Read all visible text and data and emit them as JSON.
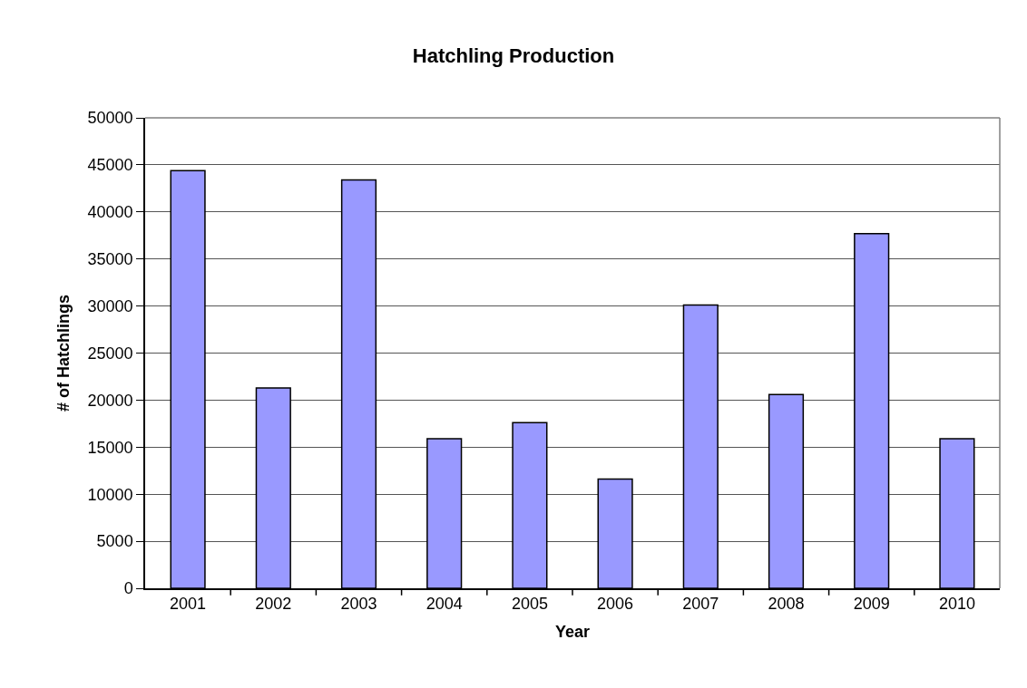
{
  "chart_data": {
    "type": "bar",
    "title": "Hatchling Production",
    "xlabel": "Year",
    "ylabel": "# of Hatchlings",
    "categories": [
      "2001",
      "2002",
      "2003",
      "2004",
      "2005",
      "2006",
      "2007",
      "2008",
      "2009",
      "2010"
    ],
    "values": [
      44400,
      21300,
      43400,
      15900,
      17600,
      11600,
      30100,
      20600,
      37700,
      15900
    ],
    "color": "#9999ff",
    "ylim": [
      0,
      50000
    ],
    "yticks": [
      0,
      5000,
      10000,
      15000,
      20000,
      25000,
      30000,
      35000,
      40000,
      45000,
      50000
    ],
    "grid": "y"
  }
}
